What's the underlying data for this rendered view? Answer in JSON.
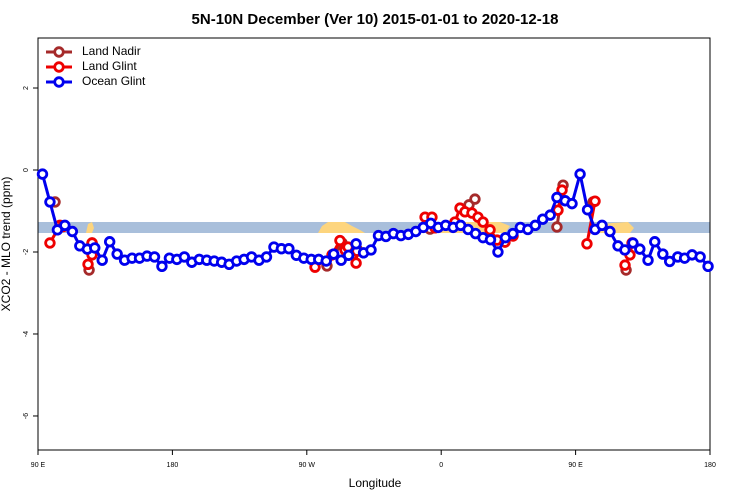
{
  "chart_data": {
    "type": "line",
    "title": "5N-10N December (Ver 10)   2015-01-01 to 2020-12-18",
    "x_label": "Longitude",
    "y_label": "XCO2 - MLO trend (ppm)",
    "xlim": [
      90,
      540
    ],
    "ylim": [
      -6.83,
      3.22
    ],
    "xticks": [
      {
        "value": 90,
        "label": "90 E"
      },
      180,
      {
        "value": 270,
        "label": "90 W"
      },
      {
        "value": 360,
        "label": "0"
      },
      {
        "value": 450,
        "label": "90 E"
      },
      {
        "value": 540,
        "label": "180"
      }
    ],
    "yticks": [
      -6,
      -4,
      -2,
      0,
      2
    ],
    "legend": "top-left",
    "series": [
      {
        "name": "Land Nadir",
        "color": "#a52a2a",
        "x": [
          101.4,
          null,
          124.2,
          126.2,
          null,
          283.5,
          293.6,
          303.6,
          null,
          352.5,
          null,
          378.6,
          382.6,
          null,
          437.5,
          441.6,
          null,
          461.7,
          null,
          483.8
        ],
        "values": [
          -0.78,
          null,
          -2.44,
          -1.78,
          null,
          -2.34,
          -1.78,
          -1.93,
          null,
          -1.44,
          null,
          -0.85,
          -0.71,
          null,
          -1.39,
          -0.37,
          null,
          -0.78,
          null,
          -2.44
        ]
      },
      {
        "name": "Land Glint",
        "color": "#ee0000",
        "x": [
          98,
          104.7,
          106.7,
          null,
          123.5,
          126.2,
          126.2,
          null,
          275.5,
          286.9,
          292.2,
          295.6,
          297.6,
          303,
          303.6,
          null,
          349.2,
          353.8,
          355.9,
          369.2,
          372.6,
          375.9,
          380.6,
          384.6,
          388,
          392.7,
          397.4,
          402.7,
          408.1,
          null,
          438.2,
          440.9,
          null,
          457.6,
          463,
          null,
          483.1,
          486.4,
          487.8
        ],
        "values": [
          -1.78,
          -1.35,
          -1.38,
          null,
          -2.3,
          -2.07,
          -1.78,
          null,
          -2.37,
          -2.07,
          -1.72,
          -1.95,
          -1.88,
          -2.27,
          -1.98,
          null,
          -1.15,
          -1.15,
          -1.41,
          -1.27,
          -0.93,
          -1.02,
          -1.05,
          -1.15,
          -1.27,
          -1.46,
          -1.71,
          -1.76,
          -1.61,
          null,
          -0.98,
          -0.49,
          null,
          -1.8,
          -0.76,
          null,
          -2.32,
          -2.07,
          -1.78
        ]
      },
      {
        "name": "Ocean Glint",
        "color": "#0000ee",
        "x": [
          93,
          98,
          103,
          108,
          113,
          118,
          123,
          128,
          133,
          138,
          143,
          148,
          153,
          158,
          163,
          168,
          173,
          178,
          183,
          188,
          193,
          198,
          203,
          208,
          213,
          218,
          223,
          228,
          233,
          238,
          243,
          248,
          253,
          258,
          263,
          268,
          273,
          278,
          283,
          288,
          293,
          298,
          303,
          308,
          313,
          318,
          323,
          328,
          333,
          338,
          343,
          348,
          353,
          358,
          363,
          368,
          373,
          378,
          383,
          388,
          393,
          398,
          403,
          408,
          413,
          418,
          423,
          428,
          433,
          437.5,
          443,
          447.6,
          453,
          458,
          463,
          467.7,
          473,
          478.4,
          483,
          488.4,
          493,
          498.5,
          503,
          508.4,
          513,
          518.4,
          523,
          528,
          533.4,
          538.7
        ],
        "values": [
          -0.1,
          -0.78,
          -1.46,
          -1.35,
          -1.5,
          -1.85,
          -1.93,
          -1.9,
          -2.2,
          -1.75,
          -2.05,
          -2.2,
          -2.15,
          -2.15,
          -2.1,
          -2.12,
          -2.35,
          -2.15,
          -2.18,
          -2.12,
          -2.25,
          -2.18,
          -2.2,
          -2.22,
          -2.25,
          -2.3,
          -2.22,
          -2.18,
          -2.12,
          -2.2,
          -2.12,
          -1.88,
          -1.92,
          -1.92,
          -2.08,
          -2.15,
          -2.18,
          -2.18,
          -2.22,
          -2.05,
          -2.2,
          -2.08,
          -1.8,
          -2.02,
          -1.95,
          -1.6,
          -1.62,
          -1.55,
          -1.6,
          -1.57,
          -1.5,
          -1.4,
          -1.3,
          -1.4,
          -1.35,
          -1.4,
          -1.35,
          -1.45,
          -1.55,
          -1.65,
          -1.7,
          -2.0,
          -1.65,
          -1.55,
          -1.4,
          -1.45,
          -1.35,
          -1.2,
          -1.1,
          -0.67,
          -0.75,
          -0.82,
          -0.1,
          -0.97,
          -1.45,
          -1.35,
          -1.5,
          -1.85,
          -1.95,
          -1.78,
          -1.93,
          -2.2,
          -1.75,
          -2.05,
          -2.23,
          -2.12,
          -2.15,
          -2.07,
          -2.12,
          -2.35
        ]
      }
    ]
  }
}
